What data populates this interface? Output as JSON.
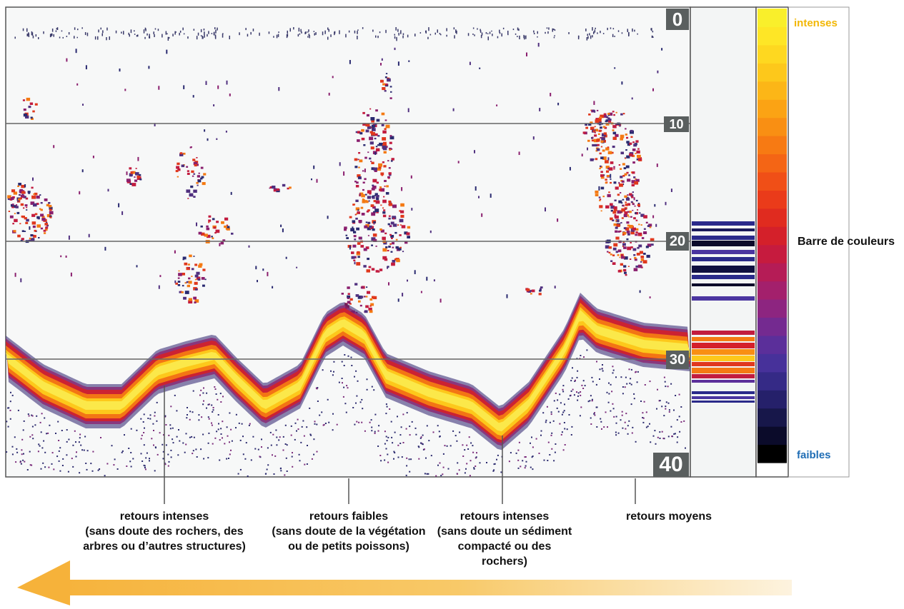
{
  "depth_scale": {
    "ticks": [
      "0",
      "10",
      "20",
      "30",
      "40"
    ]
  },
  "color_bar": {
    "title": "Barre de couleurs",
    "high_label": "intenses",
    "low_label": "faibles",
    "colors": [
      "#000000",
      "#0b0b2a",
      "#17174a",
      "#25206a",
      "#352a86",
      "#47319a",
      "#5b2f9a",
      "#742a90",
      "#8d2580",
      "#a3206c",
      "#b51c56",
      "#c61b3e",
      "#d4202a",
      "#e02b1f",
      "#ea3b1a",
      "#f04f17",
      "#f46515",
      "#f77a13",
      "#f98f13",
      "#fba314",
      "#fcb617",
      "#fdc81b",
      "#fed820",
      "#fee626",
      "#f9ef2b"
    ],
    "high_color": "#f2b705",
    "low_color": "#1f6db5"
  },
  "callouts": [
    {
      "id": "intense-left",
      "lines": [
        "retours intenses",
        "(sans doute des rochers, des",
        "arbres ou d’autres structures)"
      ]
    },
    {
      "id": "faibles",
      "lines": [
        "retours faibles",
        "(sans doute de la végétation",
        "ou de petits poissons)"
      ]
    },
    {
      "id": "intense-right",
      "lines": [
        "retours intenses",
        "(sans doute un sédiment",
        "compacté ou des rochers)"
      ]
    },
    {
      "id": "moyens",
      "lines": [
        "retours moyens"
      ]
    }
  ],
  "colors": {
    "sonar_bg": "#f7f8f8",
    "frame": "#555555",
    "arrow": "#f6b73c"
  }
}
